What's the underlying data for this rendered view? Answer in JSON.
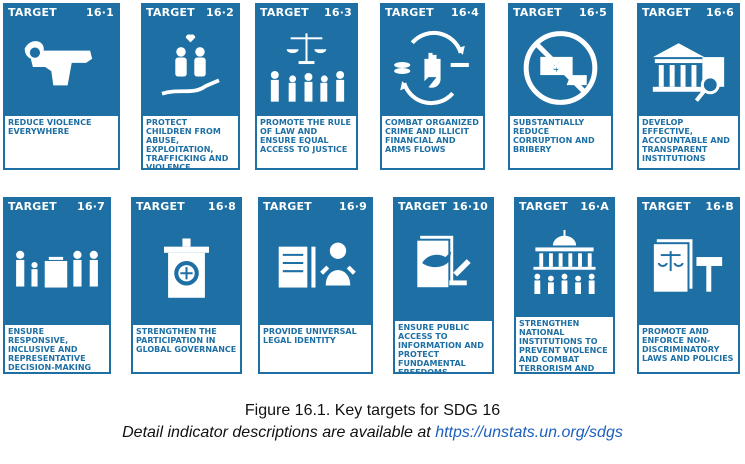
{
  "header_word": "TARGET",
  "targets": [
    {
      "number": "16·1",
      "text": "REDUCE VIOLENCE EVERYWHERE",
      "icon": "gun-icon"
    },
    {
      "number": "16·2",
      "text": "PROTECT CHILDREN FROM ABUSE, EXPLOITATION, TRAFFICKING AND VIOLENCE",
      "icon": "children-heart-hand-icon"
    },
    {
      "number": "16·3",
      "text": "PROMOTE THE RULE OF LAW AND ENSURE EQUAL ACCESS TO JUSTICE",
      "icon": "scales-people-icon"
    },
    {
      "number": "16·4",
      "text": "COMBAT ORGANIZED CRIME AND ILLICIT FINANCIAL AND ARMS FLOWS",
      "icon": "stop-hand-cycle-icon"
    },
    {
      "number": "16·5",
      "text": "SUBSTANTIALLY REDUCE CORRUPTION AND BRIBERY",
      "icon": "no-bribe-icon"
    },
    {
      "number": "16·6",
      "text": "DEVELOP EFFECTIVE, ACCOUNTABLE AND TRANSPARENT INSTITUTIONS",
      "icon": "institution-magnifier-icon"
    },
    {
      "number": "16·7",
      "text": "ENSURE RESPONSIVE, INCLUSIVE AND REPRESENTATIVE DECISION-MAKING",
      "icon": "people-ballot-icon"
    },
    {
      "number": "16·8",
      "text": "STRENGTHEN THE PARTICIPATION IN GLOBAL GOVERNANCE",
      "icon": "podium-globe-icon"
    },
    {
      "number": "16·9",
      "text": "PROVIDE UNIVERSAL LEGAL IDENTITY",
      "icon": "baby-document-icon"
    },
    {
      "number": "16·10",
      "text": "ENSURE PUBLIC ACCESS TO INFORMATION AND PROTECT FUNDAMENTAL FREEDOMS",
      "icon": "document-dove-icon"
    },
    {
      "number": "16·A",
      "text": "STRENGTHEN NATIONAL INSTITUTIONS TO PREVENT VIOLENCE AND COMBAT TERRORISM AND CRIME",
      "icon": "capitol-people-icon"
    },
    {
      "number": "16·B",
      "text": "PROMOTE AND ENFORCE NON-DISCRIMINATORY LAWS AND POLICIES",
      "icon": "law-gavel-icon"
    }
  ],
  "caption": {
    "line1": "Figure 16.1. Key targets for SDG 16",
    "line2_prefix": "Detail indicator descriptions are available at ",
    "link": "https://unstats.un.org/sdgs"
  },
  "colors": {
    "tile_blue": "#1d6fa4",
    "link_blue": "#1d5fbf"
  }
}
